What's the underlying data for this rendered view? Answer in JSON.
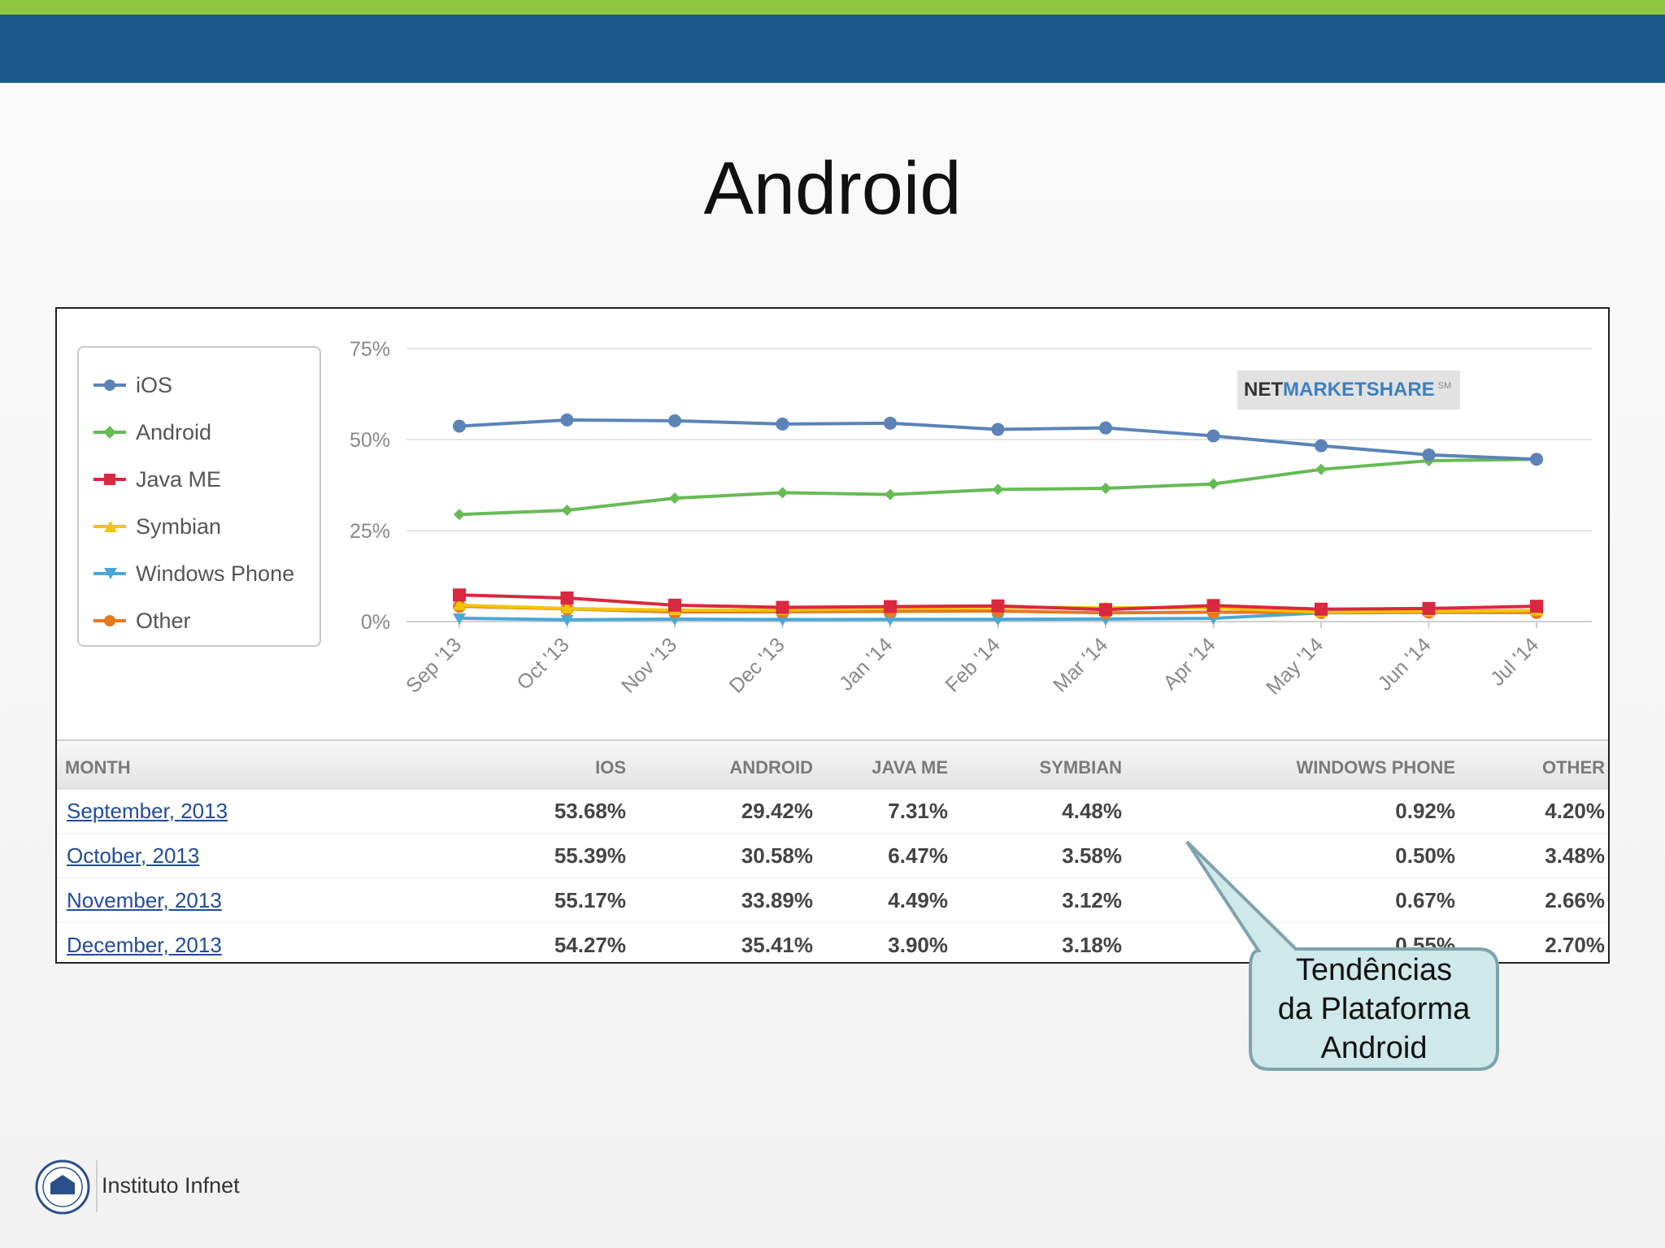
{
  "slide": {
    "title": "Android",
    "callout_lines": [
      "Tendências",
      "da Plataforma",
      "Android"
    ],
    "logo_text": "Instituto Infnet"
  },
  "brand": {
    "part1": "NET",
    "part2": "MARKETSHARE",
    "mark": "SM"
  },
  "chart_data": {
    "type": "line",
    "x": [
      "Sep '13",
      "Oct '13",
      "Nov '13",
      "Dec '13",
      "Jan '14",
      "Feb '14",
      "Mar '14",
      "Apr '14",
      "May '14",
      "Jun '14",
      "Jul '14"
    ],
    "ylim": [
      0,
      75
    ],
    "yticks": [
      0,
      25,
      50,
      75
    ],
    "ytick_labels": [
      "0%",
      "25%",
      "50%",
      "75%"
    ],
    "grid": true,
    "legend_position": "left",
    "series": [
      {
        "name": "iOS",
        "color": "#5b83b8",
        "marker": "circle",
        "values": [
          53.68,
          55.39,
          55.17,
          54.27,
          54.5,
          52.8,
          53.2,
          51.0,
          48.3,
          45.8,
          44.6
        ]
      },
      {
        "name": "Android",
        "color": "#66bb55",
        "marker": "diamond",
        "values": [
          29.42,
          30.58,
          33.89,
          35.41,
          34.9,
          36.3,
          36.6,
          37.8,
          41.8,
          44.2,
          44.6
        ]
      },
      {
        "name": "Java ME",
        "color": "#d9283f",
        "marker": "square",
        "values": [
          7.31,
          6.47,
          4.49,
          3.9,
          4.1,
          4.3,
          3.3,
          4.4,
          3.4,
          3.6,
          4.2
        ]
      },
      {
        "name": "Symbian",
        "color": "#f2c500",
        "marker": "triangle-up",
        "values": [
          4.48,
          3.58,
          3.12,
          3.18,
          3.6,
          3.9,
          3.8,
          3.8,
          2.6,
          2.8,
          3.0
        ]
      },
      {
        "name": "Windows Phone",
        "color": "#4aa8d6",
        "marker": "triangle-down",
        "values": [
          0.92,
          0.5,
          0.67,
          0.55,
          0.6,
          0.6,
          0.7,
          0.9,
          2.4,
          2.5,
          2.5
        ]
      },
      {
        "name": "Other",
        "color": "#e6791e",
        "marker": "circle",
        "values": [
          4.2,
          3.48,
          2.66,
          2.7,
          2.8,
          2.9,
          2.4,
          2.6,
          2.5,
          2.6,
          2.5
        ]
      }
    ]
  },
  "table": {
    "headers": [
      "MONTH",
      "IOS",
      "ANDROID",
      "JAVA ME",
      "SYMBIAN",
      "WINDOWS PHONE",
      "OTHER"
    ],
    "rows": [
      [
        "September, 2013",
        "53.68%",
        "29.42%",
        "7.31%",
        "4.48%",
        "0.92%",
        "4.20%"
      ],
      [
        "October, 2013",
        "55.39%",
        "30.58%",
        "6.47%",
        "3.58%",
        "0.50%",
        "3.48%"
      ],
      [
        "November, 2013",
        "55.17%",
        "33.89%",
        "4.49%",
        "3.12%",
        "0.67%",
        "2.66%"
      ],
      [
        "December, 2013",
        "54.27%",
        "35.41%",
        "3.90%",
        "3.18%",
        "0.55%",
        "2.70%"
      ]
    ]
  }
}
